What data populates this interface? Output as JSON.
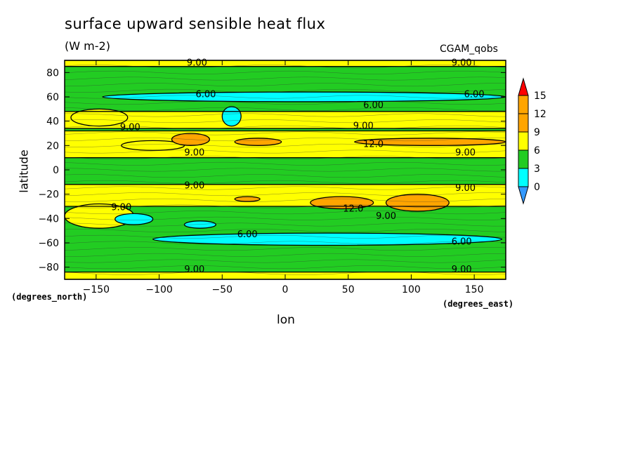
{
  "chart_data": {
    "type": "heatmap",
    "title": "surface upward sensible heat flux",
    "units": "(W m-2)",
    "dataset_label": "CGAM_qobs",
    "xlabel": "lon",
    "ylabel": "latitude",
    "x_units": "(degrees_east)",
    "y_units": "(degrees_north)",
    "xlim": [
      -175,
      175
    ],
    "ylim": [
      -90,
      90
    ],
    "x_ticks": [
      -150,
      -100,
      -50,
      0,
      50,
      100,
      150
    ],
    "x_tick_labels": [
      "−150",
      "−100",
      "−50",
      "0",
      "50",
      "100",
      "150"
    ],
    "y_ticks": [
      -80,
      -60,
      -40,
      -20,
      0,
      20,
      40,
      60,
      80
    ],
    "y_tick_labels": [
      "−80",
      "−60",
      "−40",
      "−20",
      "0",
      "20",
      "40",
      "60",
      "80"
    ],
    "colorbar": {
      "levels": [
        0,
        3,
        6,
        9,
        12,
        15
      ],
      "labels": [
        "0",
        "3",
        "6",
        "9",
        "12",
        "15"
      ],
      "colors": [
        "#3399ff",
        "#00ffff",
        "#22cc22",
        "#ffff00",
        "#ffa500",
        "#ff0000"
      ]
    },
    "background_band_level": 7.5,
    "zonal_bands": [
      {
        "lat_min": 10,
        "lat_max": 32,
        "value": 10.5
      },
      {
        "lat_min": 34,
        "lat_max": 48,
        "value": 10.5
      },
      {
        "lat_min": 85,
        "lat_max": 90,
        "value": 10.5
      },
      {
        "lat_min": -30,
        "lat_max": -12,
        "value": 10.5
      },
      {
        "lat_min": -90,
        "lat_max": -84,
        "value": 10.5
      }
    ],
    "patches": [
      {
        "lon_min": -170,
        "lon_max": -125,
        "lat_min": 36,
        "lat_max": 50,
        "value": 10.5
      },
      {
        "lon_min": -175,
        "lon_max": -120,
        "lat_min": -48,
        "lat_max": -28,
        "value": 10.5
      },
      {
        "lon_min": -130,
        "lon_max": -80,
        "lat_min": 16,
        "lat_max": 24,
        "value": 10.5
      },
      {
        "lon_min": -90,
        "lon_max": -60,
        "lat_min": 20,
        "lat_max": 30,
        "value": 13.5
      },
      {
        "lon_min": -40,
        "lon_max": -3,
        "lat_min": 20,
        "lat_max": 26,
        "value": 13.5
      },
      {
        "lon_min": 55,
        "lon_max": 175,
        "lat_min": 20,
        "lat_max": 26,
        "value": 13.5
      },
      {
        "lon_min": 20,
        "lon_max": 70,
        "lat_min": -32,
        "lat_max": -22,
        "value": 13.5
      },
      {
        "lon_min": -40,
        "lon_max": -20,
        "lat_min": -26,
        "lat_max": -22,
        "value": 13.5
      },
      {
        "lon_min": 80,
        "lon_max": 130,
        "lat_min": -34,
        "lat_max": -20,
        "value": 13.5
      },
      {
        "lon_min": -145,
        "lon_max": 175,
        "lat_min": 56,
        "lat_max": 64,
        "value": 4.5
      },
      {
        "lon_min": -50,
        "lon_max": -35,
        "lat_min": 36,
        "lat_max": 52,
        "value": 4.5
      },
      {
        "lon_min": -135,
        "lon_max": -105,
        "lat_min": -45,
        "lat_max": -36,
        "value": 4.5
      },
      {
        "lon_min": -80,
        "lon_max": -55,
        "lat_min": -48,
        "lat_max": -42,
        "value": 4.5
      },
      {
        "lon_min": -105,
        "lon_max": 172,
        "lat_min": -62,
        "lat_max": -52,
        "value": 4.5
      }
    ],
    "contour_labels": [
      {
        "lon": -70,
        "lat": 88,
        "text": "9.00"
      },
      {
        "lon": 140,
        "lat": 88,
        "text": "9.00"
      },
      {
        "lon": -63,
        "lat": 62,
        "text": "6.00"
      },
      {
        "lon": 150,
        "lat": 62,
        "text": "6.00"
      },
      {
        "lon": 70,
        "lat": 53,
        "text": "6.00"
      },
      {
        "lon": -123,
        "lat": 35,
        "text": "9.00"
      },
      {
        "lon": 62,
        "lat": 36,
        "text": "9.00"
      },
      {
        "lon": 70,
        "lat": 21,
        "text": "12.0"
      },
      {
        "lon": -72,
        "lat": 14,
        "text": "9.00"
      },
      {
        "lon": 143,
        "lat": 14,
        "text": "9.00"
      },
      {
        "lon": -72,
        "lat": -13,
        "text": "9.00"
      },
      {
        "lon": 143,
        "lat": -15,
        "text": "9.00"
      },
      {
        "lon": -130,
        "lat": -31,
        "text": "9.00"
      },
      {
        "lon": 54,
        "lat": -32,
        "text": "12.0"
      },
      {
        "lon": 80,
        "lat": -38,
        "text": "9.00"
      },
      {
        "lon": -30,
        "lat": -53,
        "text": "6.00"
      },
      {
        "lon": 140,
        "lat": -59,
        "text": "6.00"
      },
      {
        "lon": -72,
        "lat": -82,
        "text": "9.00"
      },
      {
        "lon": 140,
        "lat": -82,
        "text": "9.00"
      }
    ]
  }
}
